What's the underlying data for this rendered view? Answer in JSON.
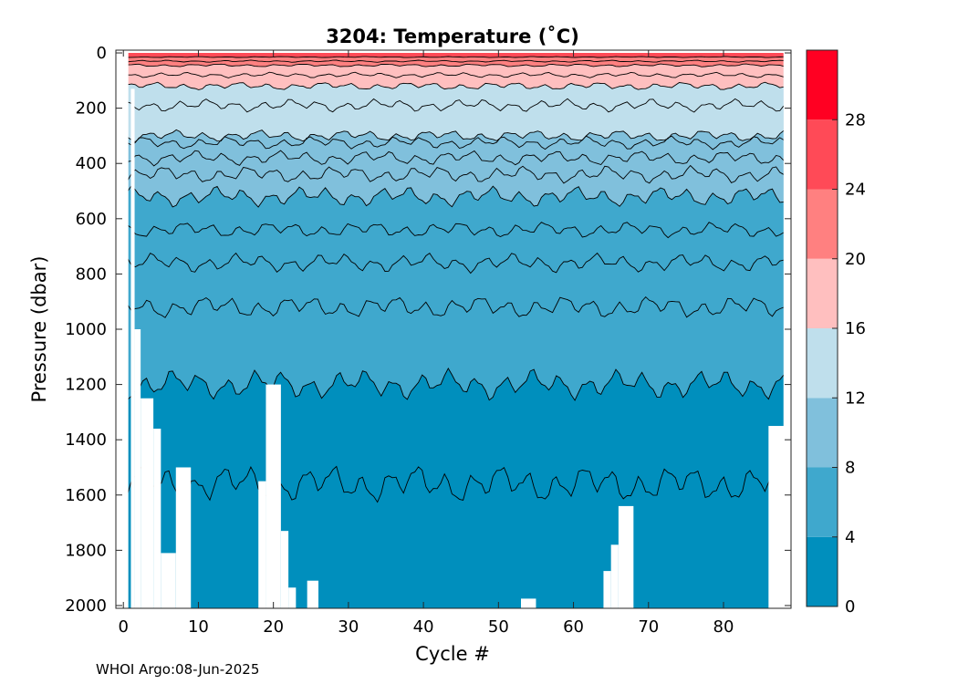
{
  "chart_data": {
    "type": "heatmap",
    "title": "3204:  Temperature (˚C)",
    "xlabel": "Cycle #",
    "ylabel": "Pressure (dbar)",
    "xlim": [
      -1,
      89
    ],
    "ylim": [
      2010,
      -10
    ],
    "y_reversed": true,
    "x_ticks": [
      "0",
      "10",
      "20",
      "30",
      "40",
      "50",
      "60",
      "70",
      "80"
    ],
    "y_ticks": [
      "0",
      "200",
      "400",
      "600",
      "800",
      "1000",
      "1200",
      "1400",
      "1600",
      "1800",
      "2000"
    ],
    "colorbar": {
      "ticks": [
        "0",
        "4",
        "8",
        "12",
        "16",
        "20",
        "24",
        "28"
      ],
      "bands": [
        {
          "from": 0,
          "to": 4,
          "color": "#008fbd"
        },
        {
          "from": 4,
          "to": 8,
          "color": "#3fa8cd"
        },
        {
          "from": 8,
          "to": 12,
          "color": "#80c0dc"
        },
        {
          "from": 12,
          "to": 16,
          "color": "#bfdfec"
        },
        {
          "from": 16,
          "to": 20,
          "color": "#ffbfbf"
        },
        {
          "from": 20,
          "to": 24,
          "color": "#ff8080"
        },
        {
          "from": 24,
          "to": 28,
          "color": "#ff4a57"
        },
        {
          "from": 28,
          "to": 32,
          "color": "#ff0022"
        }
      ]
    },
    "isotherms": [
      {
        "temp": 2,
        "pressure": 1560
      },
      {
        "temp": 4,
        "pressure": 1200
      },
      {
        "temp": 5,
        "pressure": 920
      },
      {
        "temp": 6,
        "pressure": 760
      },
      {
        "temp": 7,
        "pressure": 640
      },
      {
        "temp": 8,
        "pressure": 520
      },
      {
        "temp": 9,
        "pressure": 440
      },
      {
        "temp": 10,
        "pressure": 380
      },
      {
        "temp": 11,
        "pressure": 325
      },
      {
        "temp": 12,
        "pressure": 300
      },
      {
        "temp": 14,
        "pressure": 190
      },
      {
        "temp": 16,
        "pressure": 120
      },
      {
        "temp": 18,
        "pressure": 80
      },
      {
        "temp": 20,
        "pressure": 45
      },
      {
        "temp": 22,
        "pressure": 30
      },
      {
        "temp": 24,
        "pressure": 15
      }
    ],
    "max_pressure_by_cycle": [
      {
        "cycle": 1,
        "pressure": 130
      },
      {
        "cycle": 1.5,
        "pressure": 1000
      },
      {
        "cycle": 2.3,
        "pressure": 1250
      },
      {
        "cycle": 4,
        "pressure": 1360
      },
      {
        "cycle": 5,
        "pressure": 1810
      },
      {
        "cycle": 7,
        "pressure": 1500
      },
      {
        "cycle": 9,
        "pressure": 2010
      },
      {
        "cycle": 18,
        "pressure": 1550
      },
      {
        "cycle": 19,
        "pressure": 1200
      },
      {
        "cycle": 21,
        "pressure": 1730
      },
      {
        "cycle": 22,
        "pressure": 1935
      },
      {
        "cycle": 23,
        "pressure": 2010
      },
      {
        "cycle": 24.5,
        "pressure": 1910
      },
      {
        "cycle": 26,
        "pressure": 2010
      },
      {
        "cycle": 53,
        "pressure": 1975
      },
      {
        "cycle": 55,
        "pressure": 2010
      },
      {
        "cycle": 64,
        "pressure": 1875
      },
      {
        "cycle": 65,
        "pressure": 1780
      },
      {
        "cycle": 66,
        "pressure": 1640
      },
      {
        "cycle": 68,
        "pressure": 2010
      },
      {
        "cycle": 86,
        "pressure": 1350
      }
    ],
    "last_cycle": 88
  },
  "footer": {
    "credit": "WHOI Argo:08-Jun-2025"
  }
}
